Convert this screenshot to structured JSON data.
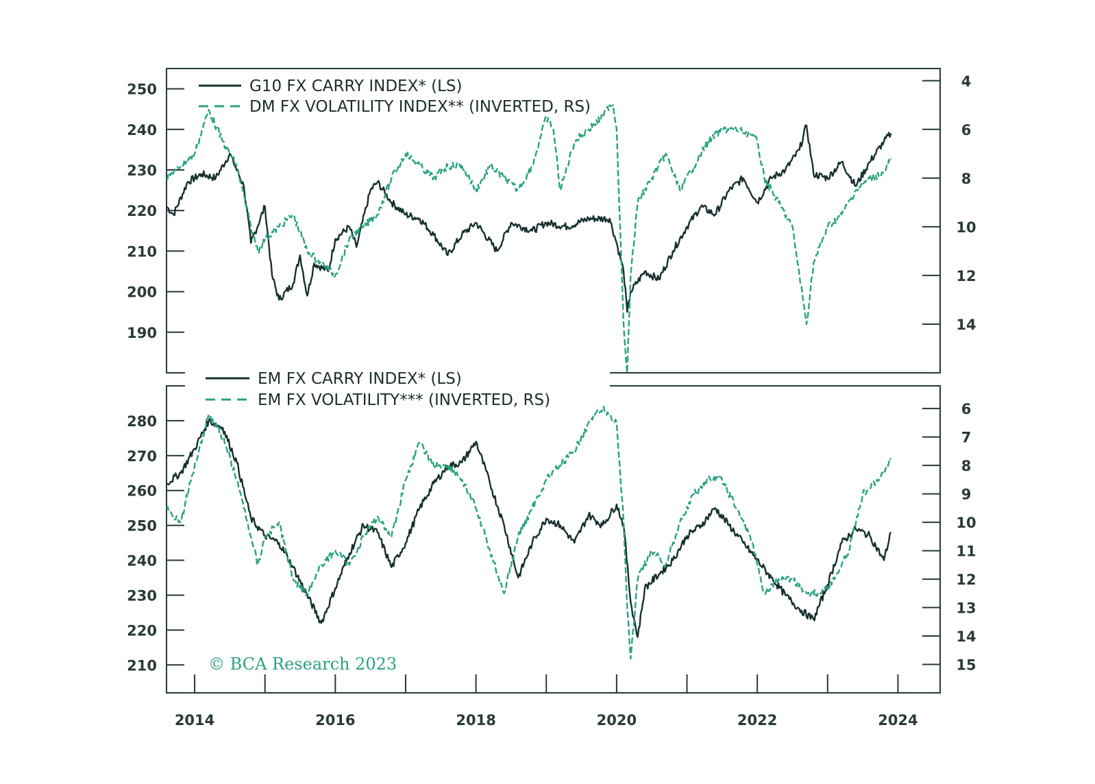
{
  "colors": {
    "carry": "#16302f",
    "volatility": "#28a27e",
    "axis": "#243838",
    "background": "#ffffff"
  },
  "copyright": "© BCA Research 2023",
  "chart_data": [
    {
      "type": "line",
      "panel": "top",
      "xlim": [
        2013.6,
        2024.6
      ],
      "ylim_left": [
        180,
        255
      ],
      "ylim_right": [
        16,
        3.5
      ],
      "right_axis_inverted": true,
      "left_ticks": [
        190,
        200,
        210,
        220,
        230,
        240,
        250
      ],
      "right_ticks": [
        4,
        6,
        8,
        10,
        12,
        14
      ],
      "legend": [
        {
          "label": "G10 FX CARRY INDEX* (LS)",
          "style": "solid"
        },
        {
          "label": "DM FX VOLATILITY INDEX** (INVERTED, RS)",
          "style": "dashed"
        }
      ],
      "series": [
        {
          "name": "G10 FX CARRY INDEX* (LS)",
          "axis": "left",
          "style": "solid",
          "x": [
            2013.6,
            2013.7,
            2013.9,
            2014.1,
            2014.3,
            2014.5,
            2014.7,
            2014.8,
            2015.0,
            2015.1,
            2015.2,
            2015.4,
            2015.5,
            2015.6,
            2015.7,
            2015.9,
            2016.0,
            2016.2,
            2016.3,
            2016.5,
            2016.6,
            2016.8,
            2017.0,
            2017.2,
            2017.4,
            2017.6,
            2017.8,
            2018.0,
            2018.3,
            2018.5,
            2018.8,
            2019.0,
            2019.3,
            2019.6,
            2019.9,
            2020.0,
            2020.1,
            2020.15,
            2020.2,
            2020.4,
            2020.6,
            2020.8,
            2021.0,
            2021.2,
            2021.4,
            2021.6,
            2021.8,
            2022.0,
            2022.2,
            2022.4,
            2022.6,
            2022.7,
            2022.8,
            2023.0,
            2023.2,
            2023.4,
            2023.6,
            2023.8,
            2023.9
          ],
          "y": [
            221,
            219,
            227,
            229,
            228,
            234,
            226,
            212,
            221,
            204,
            198,
            202,
            209,
            199,
            207,
            205,
            213,
            216,
            211,
            225,
            227,
            222,
            219,
            218,
            214,
            209,
            214,
            217,
            210,
            217,
            215,
            217,
            216,
            218,
            218,
            212,
            205,
            195,
            200,
            205,
            203,
            210,
            216,
            221,
            219,
            225,
            228,
            222,
            228,
            230,
            235,
            241,
            229,
            228,
            232,
            226,
            232,
            237,
            239
          ]
        },
        {
          "name": "DM FX VOLATILITY INDEX** (INVERTED, RS)",
          "axis": "right",
          "style": "dashed",
          "x": [
            2013.6,
            2013.8,
            2014.0,
            2014.2,
            2014.4,
            2014.6,
            2014.8,
            2014.9,
            2015.0,
            2015.2,
            2015.4,
            2015.6,
            2015.8,
            2016.0,
            2016.2,
            2016.4,
            2016.6,
            2016.8,
            2017.0,
            2017.2,
            2017.4,
            2017.6,
            2017.8,
            2018.0,
            2018.2,
            2018.4,
            2018.6,
            2018.8,
            2018.9,
            2019.0,
            2019.1,
            2019.2,
            2019.4,
            2019.6,
            2019.8,
            2019.9,
            2019.95,
            2020.0,
            2020.05,
            2020.1,
            2020.15,
            2020.2,
            2020.3,
            2020.5,
            2020.7,
            2020.9,
            2021.1,
            2021.3,
            2021.5,
            2021.7,
            2021.9,
            2022.0,
            2022.1,
            2022.3,
            2022.5,
            2022.6,
            2022.7,
            2022.8,
            2023.0,
            2023.2,
            2023.4,
            2023.6,
            2023.8,
            2023.9
          ],
          "y": [
            8,
            7.5,
            7,
            5.2,
            6.5,
            7.5,
            10,
            11,
            10.5,
            10,
            9.5,
            11,
            11.5,
            12,
            10.5,
            10,
            9.5,
            8,
            7,
            7.5,
            8,
            7.5,
            7.5,
            8.5,
            7.5,
            8,
            8.5,
            7.5,
            6.5,
            5.5,
            6,
            8.5,
            6.5,
            6,
            5.5,
            5,
            5,
            6,
            10,
            14,
            16,
            12,
            9,
            8,
            7,
            8.5,
            7.5,
            6.5,
            6,
            6,
            6.2,
            6.5,
            8,
            9,
            10,
            12,
            14,
            11.5,
            10,
            9.5,
            8.5,
            8,
            7.8,
            7.2
          ]
        }
      ]
    },
    {
      "type": "line",
      "panel": "bottom",
      "xlim": [
        2013.6,
        2024.6
      ],
      "ylim_left": [
        202,
        290
      ],
      "ylim_right": [
        16,
        5.2
      ],
      "right_axis_inverted": true,
      "left_ticks": [
        210,
        220,
        230,
        240,
        250,
        260,
        270,
        280
      ],
      "right_ticks": [
        6,
        7,
        8,
        9,
        10,
        11,
        12,
        13,
        14,
        15
      ],
      "x_ticks": [
        "2014",
        "2016",
        "2018",
        "2020",
        "2022",
        "2024"
      ],
      "legend": [
        {
          "label": "EM FX CARRY INDEX* (LS)",
          "style": "solid"
        },
        {
          "label": "EM FX VOLATILITY*** (INVERTED, RS)",
          "style": "dashed"
        }
      ],
      "series": [
        {
          "name": "EM FX CARRY INDEX* (LS)",
          "axis": "left",
          "style": "solid",
          "x": [
            2013.6,
            2013.8,
            2014.0,
            2014.2,
            2014.4,
            2014.6,
            2014.8,
            2015.0,
            2015.2,
            2015.4,
            2015.6,
            2015.8,
            2016.0,
            2016.2,
            2016.4,
            2016.6,
            2016.8,
            2017.0,
            2017.2,
            2017.4,
            2017.6,
            2017.8,
            2018.0,
            2018.2,
            2018.4,
            2018.6,
            2018.8,
            2019.0,
            2019.2,
            2019.4,
            2019.6,
            2019.8,
            2020.0,
            2020.1,
            2020.2,
            2020.3,
            2020.4,
            2020.6,
            2020.8,
            2021.0,
            2021.2,
            2021.4,
            2021.6,
            2021.8,
            2022.0,
            2022.2,
            2022.4,
            2022.6,
            2022.8,
            2023.0,
            2023.2,
            2023.4,
            2023.6,
            2023.8,
            2023.9
          ],
          "y": [
            262,
            265,
            272,
            280,
            278,
            268,
            252,
            247,
            245,
            238,
            230,
            222,
            232,
            242,
            250,
            248,
            238,
            245,
            255,
            262,
            267,
            268,
            274,
            262,
            250,
            235,
            245,
            252,
            250,
            245,
            253,
            250,
            256,
            250,
            228,
            218,
            232,
            236,
            240,
            247,
            250,
            255,
            250,
            245,
            240,
            235,
            230,
            226,
            223,
            233,
            245,
            249,
            247,
            240,
            248
          ]
        },
        {
          "name": "EM FX VOLATILITY*** (INVERTED, RS)",
          "axis": "right",
          "style": "dashed",
          "x": [
            2013.6,
            2013.8,
            2014.0,
            2014.2,
            2014.4,
            2014.6,
            2014.8,
            2014.9,
            2015.0,
            2015.2,
            2015.4,
            2015.6,
            2015.8,
            2016.0,
            2016.2,
            2016.4,
            2016.6,
            2016.8,
            2017.0,
            2017.2,
            2017.4,
            2017.6,
            2017.8,
            2018.0,
            2018.2,
            2018.4,
            2018.6,
            2018.8,
            2019.0,
            2019.2,
            2019.4,
            2019.6,
            2019.8,
            2020.0,
            2020.1,
            2020.15,
            2020.2,
            2020.3,
            2020.5,
            2020.7,
            2020.9,
            2021.1,
            2021.3,
            2021.5,
            2021.7,
            2021.9,
            2022.0,
            2022.1,
            2022.3,
            2022.5,
            2022.7,
            2022.9,
            2023.1,
            2023.3,
            2023.5,
            2023.7,
            2023.9
          ],
          "y": [
            9.5,
            10,
            8,
            6.2,
            7,
            8.5,
            10.5,
            11.5,
            10.5,
            10,
            12,
            12.5,
            11.5,
            11,
            11.5,
            10.5,
            9.8,
            10.5,
            8.5,
            7.2,
            8,
            8,
            8.5,
            9.5,
            11,
            12.5,
            10.5,
            9.5,
            8.5,
            8,
            7.5,
            6.5,
            6,
            6.5,
            10,
            13,
            14.8,
            12,
            11,
            11.5,
            10,
            9,
            8.5,
            8.5,
            9.5,
            10.5,
            11.5,
            12.5,
            12,
            12,
            12.5,
            12.5,
            12,
            11,
            9,
            8.5,
            7.8
          ]
        }
      ]
    }
  ]
}
